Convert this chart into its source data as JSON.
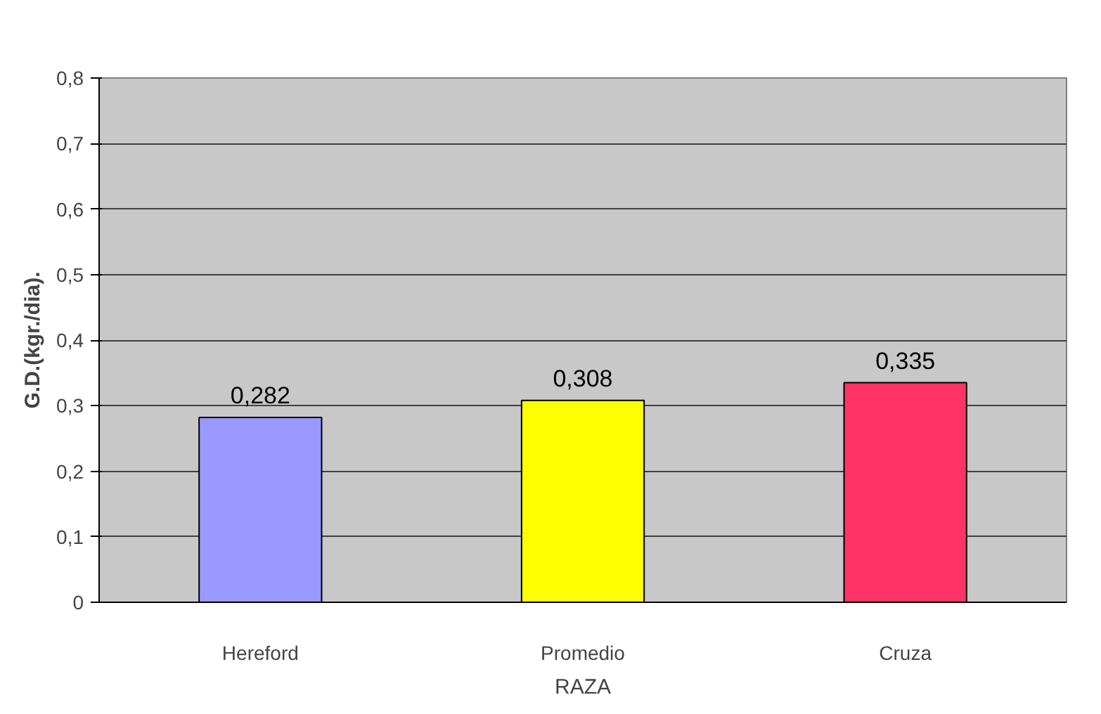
{
  "chart_data": {
    "type": "bar",
    "xlabel": "RAZA",
    "ylabel": "G.D.(kgr./dia).",
    "categories": [
      "Hereford",
      "Promedio",
      "Cruza"
    ],
    "values": [
      0.282,
      0.308,
      0.335
    ],
    "colors": [
      "#9999ff",
      "#ffff00",
      "#ff3366"
    ],
    "value_labels": [
      "0,282",
      "0,308",
      "0,335"
    ],
    "ylim": [
      0,
      0.8
    ],
    "yticks": [
      {
        "value": 0,
        "label": "0"
      },
      {
        "value": 0.1,
        "label": "0,1"
      },
      {
        "value": 0.2,
        "label": "0,2"
      },
      {
        "value": 0.3,
        "label": "0,3"
      },
      {
        "value": 0.4,
        "label": "0,4"
      },
      {
        "value": 0.5,
        "label": "0,5"
      },
      {
        "value": 0.6,
        "label": "0,6"
      },
      {
        "value": 0.7,
        "label": "0,7"
      },
      {
        "value": 0.8,
        "label": "0,8"
      }
    ],
    "grid": "y"
  }
}
